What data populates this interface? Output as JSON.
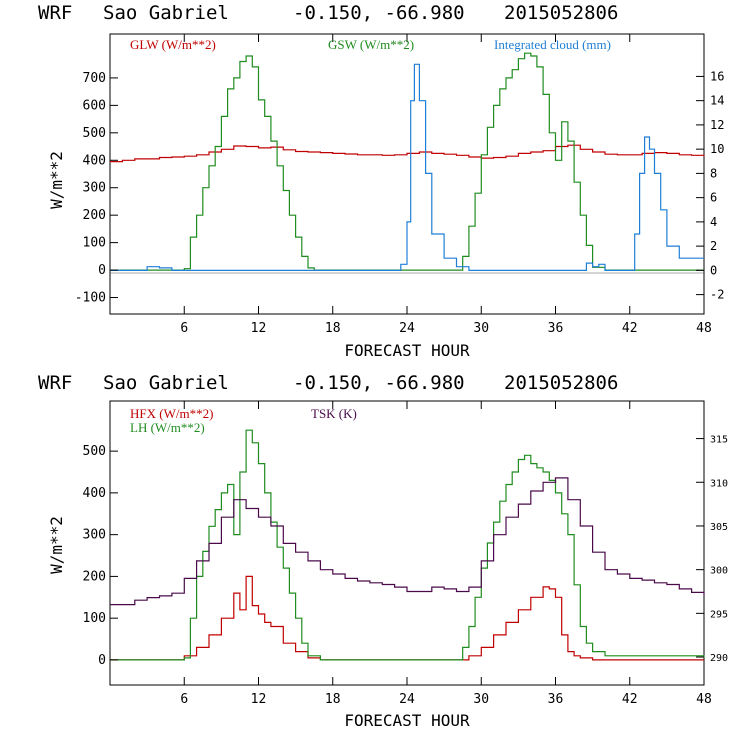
{
  "chart_data": [
    {
      "type": "line",
      "header": {
        "model": "WRF",
        "station": "Sao Gabriel",
        "coords": "-0.150, -66.980",
        "run": "2015052806"
      },
      "xlabel": "FORECAST HOUR",
      "ylabel": "W/m**2",
      "xlim": [
        0,
        48
      ],
      "xticks": [
        6,
        12,
        18,
        24,
        30,
        36,
        42,
        48
      ],
      "ylim": [
        -160,
        860
      ],
      "yticks": [
        -100,
        0,
        100,
        200,
        300,
        400,
        500,
        600,
        700
      ],
      "y2lim": [
        -3.6,
        19.5
      ],
      "y2ticks": [
        -2,
        0,
        2,
        4,
        6,
        8,
        10,
        12,
        14,
        16
      ],
      "colors": {
        "GLW": "#c00000",
        "GSW": "#1f8c1f",
        "cloud": "#1f7fd6"
      },
      "legend": {
        "glw": "GLW (W/m**2)",
        "gsw": "GSW (W/m**2)",
        "cloud": "Integrated cloud (mm)"
      },
      "series": [
        {
          "name": "GLW (W/m**2)",
          "axis": "left",
          "color": "#c00000",
          "x": [
            0,
            1,
            2,
            3,
            4,
            5,
            6,
            7,
            8,
            9,
            10,
            11,
            12,
            13,
            14,
            15,
            16,
            17,
            18,
            19,
            20,
            21,
            22,
            23,
            24,
            25,
            26,
            27,
            28,
            29,
            30,
            31,
            32,
            33,
            34,
            35,
            36,
            37,
            38,
            39,
            40,
            41,
            42,
            43,
            44,
            45,
            46,
            47,
            48
          ],
          "y": [
            395,
            400,
            405,
            405,
            410,
            412,
            415,
            420,
            430,
            440,
            452,
            450,
            445,
            448,
            438,
            432,
            430,
            428,
            425,
            423,
            420,
            420,
            418,
            420,
            425,
            430,
            425,
            422,
            418,
            412,
            408,
            410,
            415,
            425,
            430,
            435,
            450,
            455,
            440,
            430,
            422,
            420,
            420,
            425,
            428,
            425,
            420,
            418,
            415
          ]
        },
        {
          "name": "GSW (W/m**2)",
          "axis": "left",
          "color": "#1f8c1f",
          "x": [
            0,
            5.5,
            6,
            6.5,
            7,
            7.5,
            8,
            8.5,
            9,
            9.5,
            10,
            10.5,
            11,
            11.5,
            12,
            12.5,
            13,
            13.5,
            14,
            14.5,
            15,
            15.5,
            16,
            16.5,
            17,
            28,
            28.5,
            29,
            29.5,
            30,
            30.5,
            31,
            31.5,
            32,
            32.5,
            33,
            33.5,
            34,
            34.5,
            35,
            35.5,
            36,
            36.5,
            37,
            37.5,
            38,
            38.5,
            39,
            40,
            48
          ],
          "y": [
            0,
            0,
            5,
            120,
            200,
            300,
            380,
            450,
            560,
            660,
            700,
            760,
            780,
            740,
            620,
            560,
            470,
            380,
            290,
            200,
            120,
            50,
            8,
            0,
            0,
            0,
            50,
            160,
            280,
            420,
            520,
            600,
            660,
            700,
            730,
            770,
            790,
            780,
            740,
            640,
            500,
            400,
            540,
            470,
            320,
            200,
            90,
            10,
            0,
            0
          ]
        },
        {
          "name": "Integrated cloud (mm)",
          "axis": "right",
          "color": "#1f7fd6",
          "x": [
            0,
            2,
            3,
            4,
            5,
            6,
            22,
            23,
            23.5,
            24,
            24.3,
            24.6,
            25,
            25.5,
            26,
            27,
            28,
            29,
            30,
            38,
            38.5,
            39,
            39.5,
            40,
            41,
            42,
            42.4,
            42.8,
            43.2,
            43.6,
            44,
            44.5,
            45,
            46,
            47,
            48
          ],
          "y": [
            0,
            0,
            0.3,
            0.2,
            0,
            0,
            0,
            0,
            0.5,
            4,
            14,
            17,
            14,
            8,
            3,
            1,
            0.3,
            0,
            0,
            0,
            0.6,
            0.3,
            0.5,
            0,
            0,
            0,
            3,
            8,
            11,
            10,
            8,
            5,
            2,
            1,
            1,
            1
          ]
        }
      ]
    },
    {
      "type": "line",
      "header": {
        "model": "WRF",
        "station": "Sao Gabriel",
        "coords": "-0.150, -66.980",
        "run": "2015052806"
      },
      "xlabel": "FORECAST HOUR",
      "ylabel": "W/m**2",
      "xlim": [
        0,
        48
      ],
      "xticks": [
        6,
        12,
        18,
        24,
        30,
        36,
        42,
        48
      ],
      "ylim": [
        -60,
        620
      ],
      "yticks": [
        0,
        100,
        200,
        300,
        400,
        500
      ],
      "y2lim": [
        286.8,
        319.3
      ],
      "y2ticks": [
        290,
        295,
        300,
        305,
        310,
        315
      ],
      "colors": {
        "HFX": "#c00000",
        "LH": "#1f8c1f",
        "TSK": "#4a0a4a"
      },
      "legend": {
        "hfx": "HFX (W/m**2)",
        "lh": "LH (W/m**2)",
        "tsk": "TSK (K)"
      },
      "series": [
        {
          "name": "HFX (W/m**2)",
          "axis": "left",
          "color": "#c00000",
          "x": [
            0,
            5,
            6,
            7,
            8,
            9,
            10,
            10.5,
            11,
            11.5,
            12,
            12.5,
            13,
            14,
            15,
            16,
            17,
            28,
            29,
            30,
            31,
            32,
            33,
            34,
            35,
            35.5,
            36,
            36.5,
            37,
            37.5,
            38,
            39,
            40,
            48
          ],
          "y": [
            0,
            0,
            10,
            30,
            60,
            100,
            160,
            120,
            200,
            130,
            110,
            90,
            80,
            40,
            20,
            5,
            0,
            0,
            10,
            30,
            60,
            90,
            120,
            150,
            175,
            170,
            150,
            60,
            20,
            10,
            5,
            0,
            0,
            0
          ]
        },
        {
          "name": "LH (W/m**2)",
          "axis": "left",
          "color": "#1f8c1f",
          "x": [
            0,
            5,
            6,
            6.5,
            7,
            7.5,
            8,
            8.5,
            9,
            9.5,
            10,
            10.5,
            11,
            11.5,
            12,
            12.5,
            13,
            13.5,
            14,
            14.5,
            15,
            15.5,
            16,
            17,
            28,
            28.5,
            29,
            29.5,
            30,
            30.5,
            31,
            31.5,
            32,
            32.5,
            33,
            33.5,
            34,
            34.5,
            35,
            35.5,
            36,
            36.5,
            37,
            37.5,
            38,
            38.5,
            39,
            40,
            48
          ],
          "y": [
            0,
            0,
            5,
            100,
            200,
            260,
            320,
            360,
            400,
            420,
            300,
            450,
            550,
            520,
            470,
            400,
            330,
            270,
            220,
            160,
            100,
            40,
            10,
            0,
            0,
            30,
            80,
            150,
            220,
            280,
            330,
            380,
            420,
            450,
            480,
            490,
            470,
            460,
            450,
            430,
            400,
            350,
            300,
            180,
            80,
            40,
            20,
            10,
            5
          ]
        },
        {
          "name": "TSK (K)",
          "axis": "right",
          "color": "#4a0a4a",
          "x": [
            0,
            1,
            2,
            3,
            4,
            5,
            6,
            7,
            8,
            9,
            10,
            11,
            12,
            13,
            14,
            15,
            16,
            17,
            18,
            19,
            20,
            21,
            22,
            23,
            24,
            25,
            26,
            27,
            28,
            29,
            30,
            31,
            32,
            33,
            34,
            35,
            36,
            37,
            38,
            39,
            40,
            41,
            42,
            43,
            44,
            45,
            46,
            47,
            48
          ],
          "y": [
            296,
            296,
            296.5,
            296.8,
            297,
            297.3,
            299,
            301,
            303,
            306,
            308,
            307,
            306,
            305,
            303,
            302,
            301,
            300,
            299.5,
            299,
            298.7,
            298.5,
            298.3,
            298,
            297.5,
            297.5,
            298,
            297.8,
            297.5,
            298,
            301,
            304,
            306,
            307.5,
            309,
            310,
            310.5,
            308,
            305,
            302,
            300,
            299.5,
            299,
            298.8,
            298.5,
            298.3,
            297.8,
            297.4,
            297
          ]
        }
      ]
    }
  ]
}
